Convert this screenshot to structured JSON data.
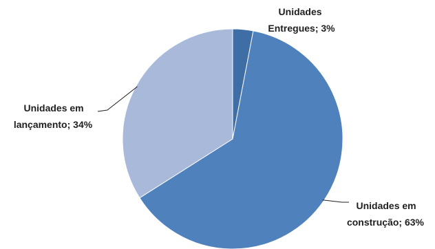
{
  "chart_data": {
    "type": "pie",
    "slices": [
      {
        "label_line1": "Unidades",
        "label_line2": "Entregues; 3%",
        "value": 3,
        "color": "#3f6ea6"
      },
      {
        "label_line1": "Unidades em",
        "label_line2": "construção; 63%",
        "value": 63,
        "color": "#4f81bd"
      },
      {
        "label_line1": "Unidades em",
        "label_line2": "lançamento; 34%",
        "value": 34,
        "color": "#a8b9d9"
      }
    ],
    "start_angle_deg": 0,
    "direction": "clockwise",
    "legend": "none"
  }
}
